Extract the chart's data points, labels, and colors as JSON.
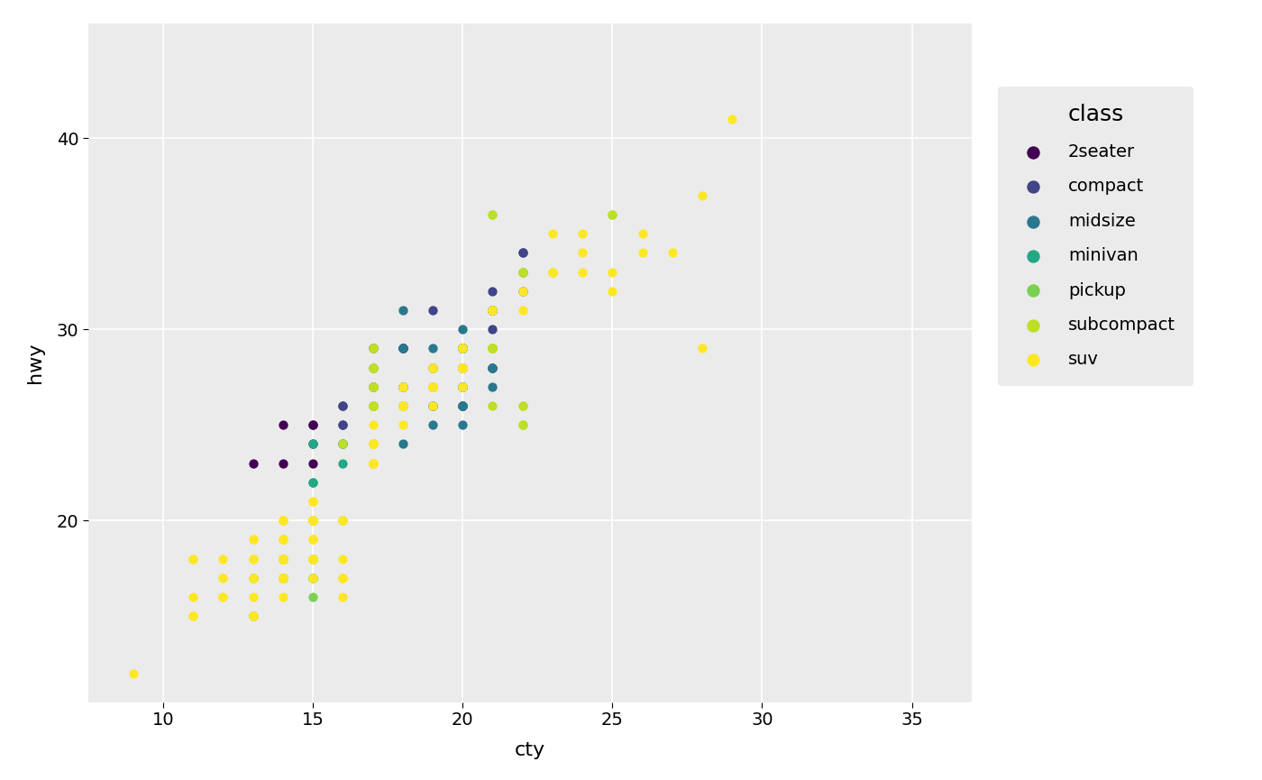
{
  "title": "",
  "xlabel": "cty",
  "ylabel": "hwy",
  "legend_title": "class",
  "bg_color": "#EBEBEB",
  "grid_color": "#FFFFFF",
  "classes": [
    "2seater",
    "compact",
    "midsize",
    "minivan",
    "pickup",
    "subcompact",
    "suv"
  ],
  "class_colors": {
    "2seater": "#440154",
    "compact": "#414487",
    "midsize": "#2A788E",
    "minivan": "#22A884",
    "pickup": "#7AD151",
    "subcompact": "#BDDF26",
    "suv": "#FDE725"
  },
  "points": {
    "2seater": [
      [
        15,
        23
      ],
      [
        15,
        24
      ],
      [
        15,
        25
      ],
      [
        15,
        25
      ],
      [
        14,
        25
      ],
      [
        13,
        23
      ],
      [
        14,
        23
      ]
    ],
    "compact": [
      [
        18,
        29
      ],
      [
        18,
        29
      ],
      [
        21,
        31
      ],
      [
        21,
        30
      ],
      [
        16,
        25
      ],
      [
        18,
        26
      ],
      [
        18,
        26
      ],
      [
        18,
        27
      ],
      [
        19,
        27
      ],
      [
        19,
        27
      ],
      [
        19,
        27
      ],
      [
        20,
        28
      ],
      [
        20,
        29
      ],
      [
        20,
        29
      ],
      [
        21,
        29
      ],
      [
        21,
        31
      ],
      [
        22,
        34
      ],
      [
        22,
        32
      ],
      [
        22,
        33
      ],
      [
        22,
        34
      ],
      [
        20,
        28
      ],
      [
        20,
        28
      ],
      [
        16,
        26
      ],
      [
        17,
        27
      ],
      [
        17,
        27
      ],
      [
        17,
        27
      ],
      [
        17,
        28
      ],
      [
        20,
        29
      ],
      [
        20,
        28
      ],
      [
        21,
        28
      ],
      [
        16,
        25
      ],
      [
        17,
        27
      ],
      [
        16,
        26
      ],
      [
        17,
        29
      ],
      [
        17,
        29
      ],
      [
        18,
        29
      ],
      [
        18,
        26
      ],
      [
        20,
        27
      ],
      [
        21,
        28
      ],
      [
        19,
        28
      ],
      [
        20,
        28
      ],
      [
        20,
        29
      ],
      [
        21,
        32
      ],
      [
        21,
        31
      ],
      [
        20,
        29
      ],
      [
        19,
        31
      ],
      [
        18,
        29
      ],
      [
        21,
        31
      ],
      [
        21,
        31
      ],
      [
        21,
        31
      ]
    ],
    "midsize": [
      [
        18,
        26
      ],
      [
        18,
        26
      ],
      [
        18,
        27
      ],
      [
        19,
        26
      ],
      [
        19,
        27
      ],
      [
        20,
        27
      ],
      [
        20,
        25
      ],
      [
        20,
        26
      ],
      [
        20,
        26
      ],
      [
        20,
        26
      ],
      [
        18,
        24
      ],
      [
        19,
        26
      ],
      [
        18,
        27
      ],
      [
        20,
        26
      ],
      [
        19,
        29
      ],
      [
        20,
        26
      ],
      [
        20,
        26
      ],
      [
        19,
        25
      ],
      [
        20,
        27
      ],
      [
        20,
        27
      ],
      [
        20,
        27
      ],
      [
        21,
        27
      ],
      [
        20,
        29
      ],
      [
        18,
        31
      ],
      [
        18,
        27
      ],
      [
        20,
        29
      ],
      [
        21,
        28
      ],
      [
        21,
        28
      ],
      [
        20,
        29
      ],
      [
        21,
        31
      ],
      [
        20,
        30
      ],
      [
        18,
        29
      ],
      [
        19,
        28
      ],
      [
        20,
        26
      ],
      [
        20,
        29
      ],
      [
        20,
        29
      ],
      [
        20,
        29
      ]
    ],
    "minivan": [
      [
        16,
        23
      ],
      [
        15,
        24
      ],
      [
        17,
        24
      ],
      [
        15,
        22
      ],
      [
        16,
        24
      ],
      [
        15,
        22
      ],
      [
        16,
        24
      ],
      [
        16,
        24
      ]
    ],
    "pickup": [
      [
        14,
        17
      ],
      [
        14,
        17
      ],
      [
        13,
        17
      ],
      [
        13,
        15
      ],
      [
        14,
        17
      ],
      [
        14,
        18
      ],
      [
        14,
        18
      ],
      [
        15,
        16
      ],
      [
        16,
        20
      ],
      [
        15,
        17
      ],
      [
        14,
        17
      ],
      [
        14,
        17
      ],
      [
        13,
        15
      ],
      [
        14,
        18
      ],
      [
        14,
        18
      ],
      [
        14,
        18
      ],
      [
        14,
        18
      ],
      [
        15,
        17
      ],
      [
        14,
        17
      ],
      [
        14,
        17
      ],
      [
        14,
        17
      ],
      [
        13,
        17
      ],
      [
        13,
        15
      ],
      [
        14,
        17
      ],
      [
        14,
        17
      ],
      [
        14,
        17
      ],
      [
        14,
        17
      ],
      [
        15,
        18
      ],
      [
        15,
        18
      ],
      [
        15,
        18
      ],
      [
        15,
        18
      ],
      [
        14,
        18
      ],
      [
        14,
        18
      ],
      [
        14,
        18
      ],
      [
        14,
        18
      ],
      [
        15,
        20
      ],
      [
        15,
        20
      ],
      [
        15,
        17
      ],
      [
        15,
        17
      ],
      [
        15,
        18
      ],
      [
        14,
        18
      ],
      [
        14,
        18
      ],
      [
        15,
        18
      ],
      [
        15,
        20
      ],
      [
        15,
        20
      ]
    ],
    "subcompact": [
      [
        25,
        36
      ],
      [
        25,
        36
      ],
      [
        21,
        29
      ],
      [
        21,
        29
      ],
      [
        21,
        26
      ],
      [
        22,
        26
      ],
      [
        22,
        25
      ],
      [
        22,
        25
      ],
      [
        21,
        29
      ],
      [
        20,
        29
      ],
      [
        20,
        29
      ],
      [
        21,
        29
      ],
      [
        21,
        29
      ],
      [
        21,
        29
      ],
      [
        21,
        29
      ],
      [
        21,
        36
      ],
      [
        21,
        36
      ],
      [
        22,
        26
      ],
      [
        23,
        33
      ],
      [
        22,
        33
      ],
      [
        22,
        33
      ],
      [
        20,
        29
      ],
      [
        18,
        26
      ],
      [
        18,
        26
      ],
      [
        16,
        24
      ],
      [
        17,
        26
      ],
      [
        17,
        26
      ],
      [
        17,
        28
      ],
      [
        17,
        28
      ],
      [
        17,
        29
      ],
      [
        17,
        29
      ],
      [
        17,
        26
      ],
      [
        17,
        26
      ],
      [
        17,
        26
      ],
      [
        17,
        26
      ],
      [
        17,
        26
      ],
      [
        17,
        27
      ],
      [
        17,
        27
      ],
      [
        17,
        26
      ],
      [
        17,
        26
      ],
      [
        17,
        26
      ],
      [
        17,
        26
      ],
      [
        17,
        26
      ],
      [
        17,
        27
      ],
      [
        17,
        27
      ]
    ],
    "suv": [
      [
        13,
        18
      ],
      [
        13,
        17
      ],
      [
        13,
        19
      ],
      [
        13,
        19
      ],
      [
        14,
        17
      ],
      [
        14,
        18
      ],
      [
        14,
        17
      ],
      [
        14,
        19
      ],
      [
        15,
        18
      ],
      [
        14,
        18
      ],
      [
        14,
        17
      ],
      [
        14,
        17
      ],
      [
        14,
        18
      ],
      [
        14,
        18
      ],
      [
        14,
        17
      ],
      [
        14,
        16
      ],
      [
        14,
        18
      ],
      [
        14,
        17
      ],
      [
        14,
        17
      ],
      [
        14,
        17
      ],
      [
        14,
        19
      ],
      [
        14,
        17
      ],
      [
        14,
        18
      ],
      [
        14,
        18
      ],
      [
        14,
        18
      ],
      [
        15,
        18
      ],
      [
        15,
        20
      ],
      [
        15,
        20
      ],
      [
        15,
        17
      ],
      [
        15,
        19
      ],
      [
        15,
        18
      ],
      [
        15,
        18
      ],
      [
        15,
        19
      ],
      [
        15,
        19
      ],
      [
        15,
        18
      ],
      [
        15,
        18
      ],
      [
        15,
        20
      ],
      [
        15,
        21
      ],
      [
        15,
        20
      ],
      [
        15,
        21
      ],
      [
        16,
        18
      ],
      [
        16,
        16
      ],
      [
        16,
        17
      ],
      [
        16,
        17
      ],
      [
        16,
        17
      ],
      [
        16,
        20
      ],
      [
        16,
        20
      ],
      [
        17,
        24
      ],
      [
        17,
        24
      ],
      [
        17,
        24
      ],
      [
        17,
        25
      ],
      [
        17,
        24
      ],
      [
        17,
        23
      ],
      [
        17,
        24
      ],
      [
        17,
        23
      ],
      [
        17,
        24
      ],
      [
        17,
        23
      ],
      [
        17,
        23
      ],
      [
        17,
        23
      ],
      [
        17,
        23
      ],
      [
        18,
        26
      ],
      [
        18,
        26
      ],
      [
        18,
        26
      ],
      [
        18,
        27
      ],
      [
        18,
        26
      ],
      [
        18,
        27
      ],
      [
        18,
        26
      ],
      [
        18,
        25
      ],
      [
        19,
        27
      ],
      [
        19,
        27
      ],
      [
        19,
        28
      ],
      [
        19,
        27
      ],
      [
        19,
        27
      ],
      [
        19,
        27
      ],
      [
        19,
        26
      ],
      [
        19,
        27
      ],
      [
        19,
        27
      ],
      [
        19,
        27
      ],
      [
        19,
        28
      ],
      [
        19,
        27
      ],
      [
        19,
        27
      ],
      [
        19,
        27
      ],
      [
        19,
        27
      ],
      [
        20,
        27
      ],
      [
        20,
        29
      ],
      [
        20,
        28
      ],
      [
        20,
        28
      ],
      [
        20,
        28
      ],
      [
        20,
        28
      ],
      [
        20,
        28
      ],
      [
        20,
        27
      ],
      [
        20,
        28
      ],
      [
        21,
        31
      ],
      [
        21,
        31
      ],
      [
        21,
        31
      ],
      [
        22,
        31
      ],
      [
        22,
        32
      ],
      [
        23,
        33
      ],
      [
        23,
        33
      ],
      [
        23,
        35
      ],
      [
        24,
        35
      ],
      [
        24,
        34
      ],
      [
        24,
        33
      ],
      [
        25,
        33
      ],
      [
        25,
        32
      ],
      [
        26,
        34
      ],
      [
        26,
        35
      ],
      [
        27,
        34
      ],
      [
        28,
        29
      ],
      [
        28,
        37
      ],
      [
        29,
        41
      ],
      [
        11,
        15
      ],
      [
        11,
        15
      ],
      [
        11,
        16
      ],
      [
        11,
        18
      ],
      [
        11,
        18
      ],
      [
        12,
        16
      ],
      [
        12,
        16
      ],
      [
        12,
        18
      ],
      [
        12,
        17
      ],
      [
        12,
        17
      ],
      [
        9,
        12
      ],
      [
        13,
        18
      ],
      [
        13,
        15
      ],
      [
        13,
        16
      ],
      [
        14,
        20
      ],
      [
        14,
        20
      ],
      [
        14,
        20
      ],
      [
        14,
        19
      ],
      [
        14,
        19
      ],
      [
        15,
        20
      ],
      [
        13,
        17
      ],
      [
        13,
        15
      ],
      [
        14,
        18
      ]
    ]
  },
  "xlim": [
    7.5,
    37
  ],
  "ylim": [
    10.5,
    46
  ],
  "xticks": [
    10,
    15,
    20,
    25,
    30,
    35
  ],
  "yticks": [
    20,
    30,
    40
  ],
  "marker_size": 55,
  "font_size": 14,
  "legend_font_size": 14
}
